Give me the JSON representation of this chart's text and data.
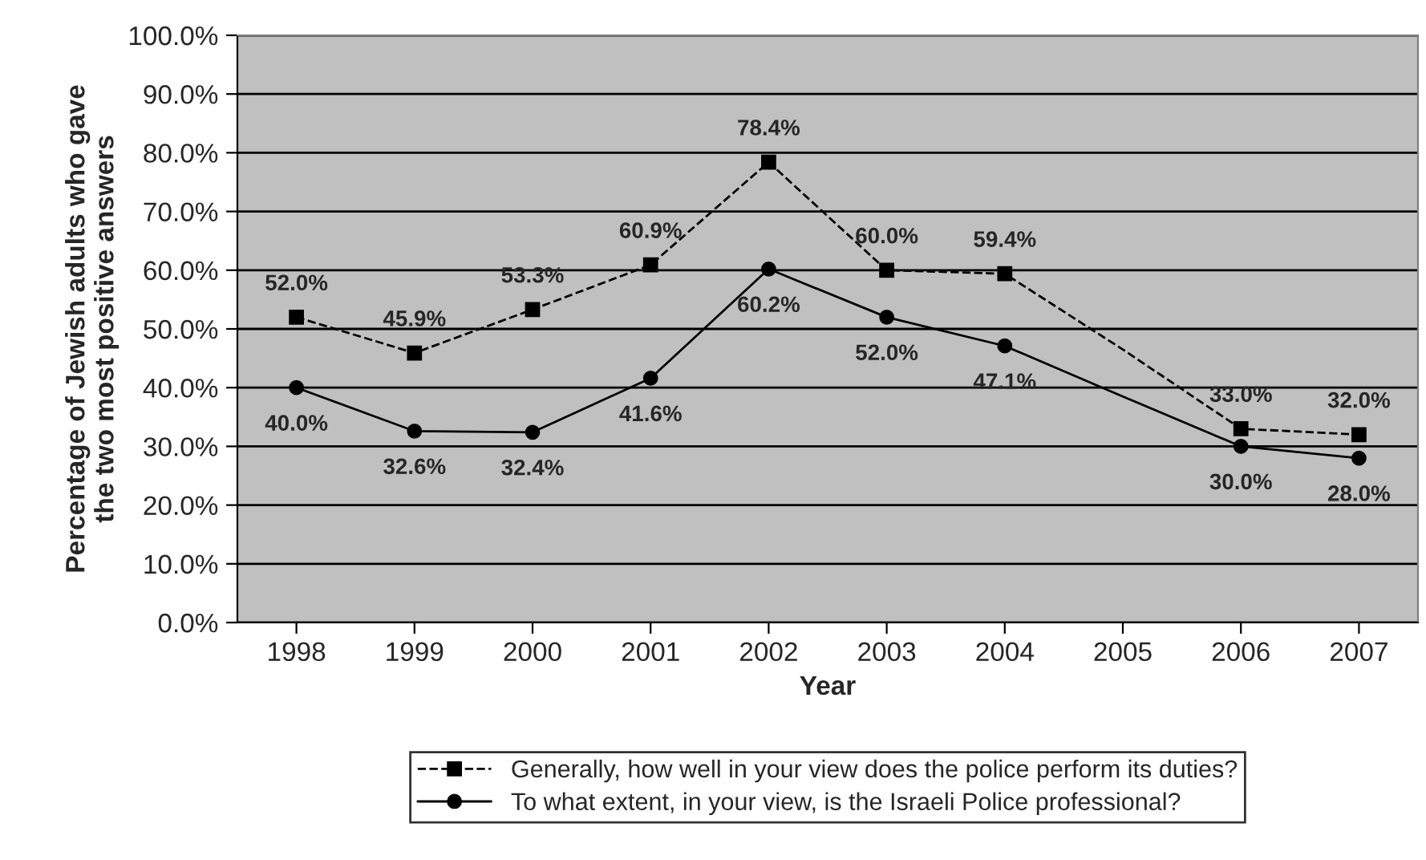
{
  "chart_data": {
    "type": "line",
    "xlabel": "Year",
    "ylabel": "Percentage of Jewish adults who gave\nthe two most positive answers",
    "categories": [
      "1998",
      "1999",
      "2000",
      "2001",
      "2002",
      "2003",
      "2004",
      "2005",
      "2006",
      "2007"
    ],
    "series": [
      {
        "name": "Generally, how well in your view does the police perform its duties?",
        "color": "#000000",
        "marker": "square",
        "line_style": "dashed",
        "values": [
          52.0,
          45.9,
          53.3,
          60.9,
          78.4,
          60.0,
          59.4,
          46.5,
          33.0,
          32.0
        ],
        "value_labels": [
          "52.0%",
          "45.9%",
          "53.3%",
          "60.9%",
          "78.4%",
          "60.0%",
          "59.4%",
          null,
          "33.0%",
          "32.0%"
        ]
      },
      {
        "name": "To what extent, in your view, is the Israeli Police professional?",
        "color": "#000000",
        "marker": "circle",
        "line_style": "solid",
        "values": [
          40.0,
          32.6,
          32.4,
          41.6,
          60.2,
          52.0,
          47.1,
          38.5,
          30.0,
          28.0
        ],
        "value_labels": [
          "40.0%",
          "32.6%",
          "32.4%",
          "41.6%",
          "60.2%",
          "52.0%",
          "47.1%",
          null,
          "30.0%",
          "28.0%"
        ]
      }
    ],
    "ylim": [
      0,
      100
    ],
    "yticks": [
      {
        "value": 0,
        "label": "0.0%"
      },
      {
        "value": 10,
        "label": "10.0%"
      },
      {
        "value": 20,
        "label": "20.0%"
      },
      {
        "value": 30,
        "label": "30.0%"
      },
      {
        "value": 40,
        "label": "40.0%"
      },
      {
        "value": 50,
        "label": "50.0%"
      },
      {
        "value": 60,
        "label": "60.0%"
      },
      {
        "value": 70,
        "label": "70.0%"
      },
      {
        "value": 80,
        "label": "80.0%"
      },
      {
        "value": 90,
        "label": "90.0%"
      },
      {
        "value": 100,
        "label": "100.0%"
      }
    ],
    "grid": "y",
    "legend": "bottom"
  }
}
